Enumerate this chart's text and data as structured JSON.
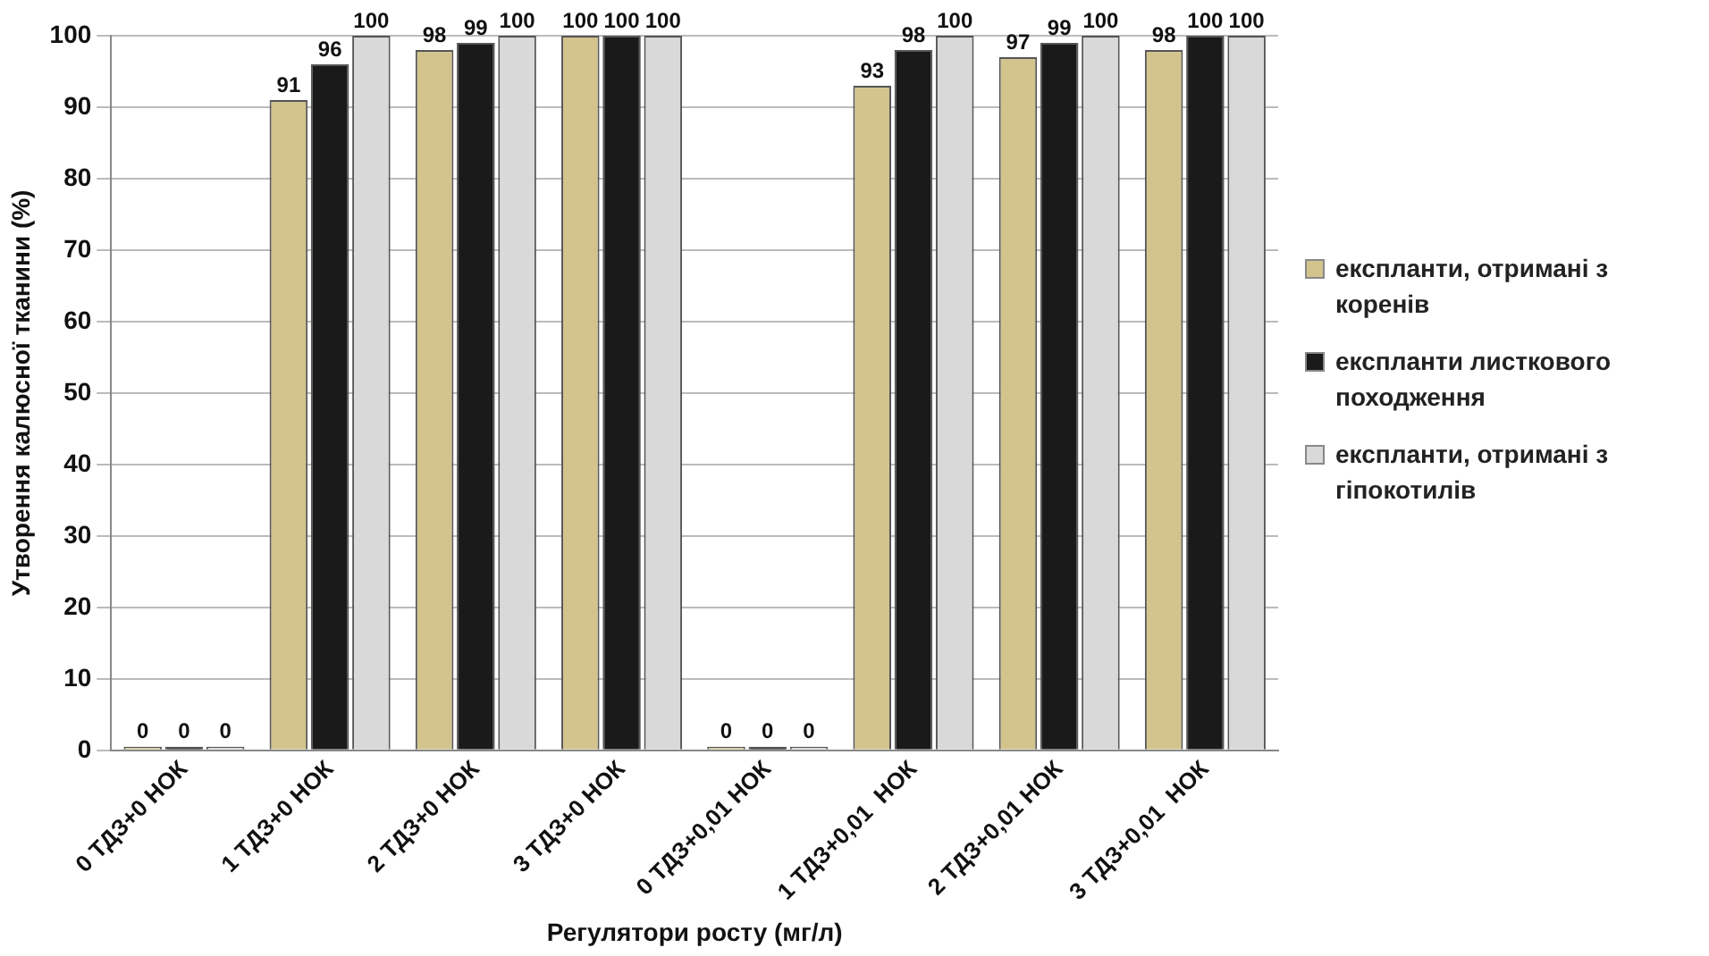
{
  "chart_data": {
    "type": "bar",
    "xlabel": "Регулятори росту (мг/л)",
    "ylabel": "Утворення калюсної тканини (%)",
    "categories": [
      "0 ТДЗ+0 НОК",
      "1 ТДЗ+0 НОК",
      "2 ТДЗ+0 НОК",
      "3 ТДЗ+0 НОК",
      "0 ТДЗ+0,01 НОК",
      "1 ТДЗ+0,01  НОК",
      "2 ТДЗ+0,01 НОК",
      "3 ТДЗ+0,01  НОК"
    ],
    "series": [
      {
        "name": "експланти, отримані з коренів",
        "color": "#d3c48e",
        "values": [
          0,
          91,
          98,
          100,
          0,
          93,
          97,
          98
        ]
      },
      {
        "name": "експланти листкового походження",
        "color": "#1a1a1a",
        "values": [
          0,
          96,
          99,
          100,
          0,
          98,
          99,
          100
        ]
      },
      {
        "name": "експланти, отримані з гіпокотилів",
        "color": "#d9d9d9",
        "values": [
          0,
          100,
          100,
          100,
          0,
          100,
          100,
          100
        ]
      }
    ],
    "ylim": [
      0,
      100
    ],
    "yticks": [
      0,
      10,
      20,
      30,
      40,
      50,
      60,
      70,
      80,
      90,
      100
    ],
    "grid": "y",
    "legend": "right",
    "data_labels": true
  }
}
